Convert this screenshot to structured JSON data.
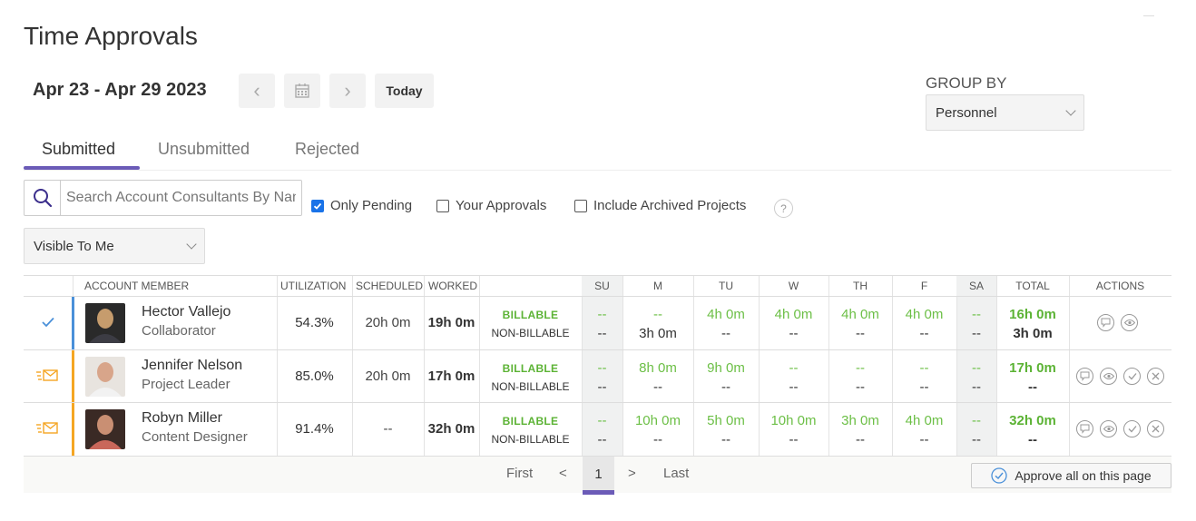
{
  "page": {
    "title": "Time Approvals"
  },
  "week": {
    "range": "Apr 23 - Apr 29 2023",
    "today_label": "Today"
  },
  "group_by": {
    "label": "GROUP BY",
    "value": "Personnel"
  },
  "tabs": [
    {
      "label": "Submitted",
      "active": true
    },
    {
      "label": "Unsubmitted"
    },
    {
      "label": "Rejected"
    }
  ],
  "filters": {
    "search_placeholder": "Search Account Consultants By Name",
    "only_pending": {
      "label": "Only Pending",
      "checked": true
    },
    "your_approvals": {
      "label": "Your Approvals",
      "checked": false
    },
    "include_archived": {
      "label": "Include Archived Projects",
      "checked": false
    },
    "help": "?",
    "visibility": "Visible To Me"
  },
  "columns": {
    "member": "ACCOUNT MEMBER",
    "utilization": "UTILIZATION",
    "scheduled": "SCHEDULED",
    "worked": "WORKED",
    "su": "SU",
    "m": "M",
    "tu": "TU",
    "w": "W",
    "th": "TH",
    "f": "F",
    "sa": "SA",
    "total": "TOTAL",
    "actions": "ACTIONS"
  },
  "rows": [
    {
      "name": "Hector Vallejo",
      "role": "Collaborator",
      "status": "approved",
      "accent": "#4a90d9",
      "utilization": "54.3%",
      "scheduled": "20h 0m",
      "worked": "19h 0m",
      "billable_label": "BILLABLE",
      "nonbillable_label": "NON-BILLABLE",
      "billable": [
        "--",
        "--",
        "4h 0m",
        "4h 0m",
        "4h 0m",
        "4h 0m",
        "--"
      ],
      "nonbillable": [
        "--",
        "3h 0m",
        "--",
        "--",
        "--",
        "--",
        "--"
      ],
      "total_billable": "16h 0m",
      "total_nonbillable": "3h 0m"
    },
    {
      "name": "Jennifer Nelson",
      "role": "Project Leader",
      "status": "pending",
      "accent": "#f5a623",
      "utilization": "85.0%",
      "scheduled": "20h 0m",
      "worked": "17h 0m",
      "billable_label": "BILLABLE",
      "nonbillable_label": "NON-BILLABLE",
      "billable": [
        "--",
        "8h 0m",
        "9h 0m",
        "--",
        "--",
        "--",
        "--"
      ],
      "nonbillable": [
        "--",
        "--",
        "--",
        "--",
        "--",
        "--",
        "--"
      ],
      "total_billable": "17h 0m",
      "total_nonbillable": "--"
    },
    {
      "name": "Robyn Miller",
      "role": "Content Designer",
      "status": "pending",
      "accent": "#f5a623",
      "utilization": "91.4%",
      "scheduled": "--",
      "worked": "32h 0m",
      "billable_label": "BILLABLE",
      "nonbillable_label": "NON-BILLABLE",
      "billable": [
        "--",
        "10h 0m",
        "5h 0m",
        "10h 0m",
        "3h 0m",
        "4h 0m",
        "--"
      ],
      "nonbillable": [
        "--",
        "--",
        "--",
        "--",
        "--",
        "--",
        "--"
      ],
      "total_billable": "32h 0m",
      "total_nonbillable": "--"
    }
  ],
  "pagination": {
    "first": "First",
    "prev": "<",
    "current": "1",
    "next": ">",
    "last": "Last"
  },
  "approve_all_label": "Approve all on this page"
}
